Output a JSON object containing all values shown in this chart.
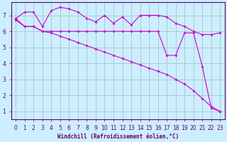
{
  "xlabel": "Windchill (Refroidissement éolien,°C)",
  "bg_color": "#cceeff",
  "grid_color": "#aacccc",
  "line_color": "#cc00cc",
  "spine_color": "#660066",
  "xlim": [
    -0.5,
    23.5
  ],
  "ylim": [
    0.5,
    7.8
  ],
  "xticks": [
    0,
    1,
    2,
    3,
    4,
    5,
    6,
    7,
    8,
    9,
    10,
    11,
    12,
    13,
    14,
    15,
    16,
    17,
    18,
    19,
    20,
    21,
    22,
    23
  ],
  "yticks": [
    1,
    2,
    3,
    4,
    5,
    6,
    7
  ],
  "line1_x": [
    0,
    1,
    2,
    3,
    4,
    5,
    6,
    7,
    8,
    9,
    10,
    11,
    12,
    13,
    14,
    15,
    16,
    17,
    18,
    19,
    20,
    21,
    22,
    23
  ],
  "line1_y": [
    6.8,
    7.2,
    7.2,
    6.3,
    7.3,
    7.5,
    7.4,
    7.2,
    6.8,
    6.6,
    7.0,
    6.5,
    6.9,
    6.4,
    7.0,
    7.0,
    7.0,
    6.9,
    6.5,
    6.3,
    6.0,
    5.8,
    5.8,
    5.9
  ],
  "line2_x": [
    0,
    1,
    2,
    3,
    4,
    5,
    6,
    7,
    8,
    9,
    10,
    11,
    12,
    13,
    14,
    15,
    16,
    17,
    18,
    19,
    20,
    21,
    22,
    23
  ],
  "line2_y": [
    6.8,
    6.3,
    6.3,
    6.0,
    6.0,
    6.0,
    6.0,
    6.0,
    6.0,
    6.0,
    6.0,
    6.0,
    6.0,
    6.0,
    6.0,
    6.0,
    6.0,
    4.5,
    4.5,
    5.9,
    5.9,
    3.8,
    1.2,
    1.0
  ],
  "line3_x": [
    0,
    1,
    2,
    3,
    4,
    5,
    6,
    7,
    8,
    9,
    10,
    11,
    12,
    13,
    14,
    15,
    16,
    17,
    18,
    19,
    20,
    21,
    22,
    23
  ],
  "line3_y": [
    6.7,
    6.3,
    6.3,
    6.0,
    5.9,
    5.7,
    5.5,
    5.3,
    5.1,
    4.9,
    4.7,
    4.5,
    4.3,
    4.1,
    3.9,
    3.7,
    3.5,
    3.3,
    3.0,
    2.7,
    2.3,
    1.8,
    1.3,
    1.0
  ],
  "xlabel_fontsize": 5.5,
  "tick_fontsize": 5.5,
  "marker_size": 2.0,
  "line_width": 0.8
}
